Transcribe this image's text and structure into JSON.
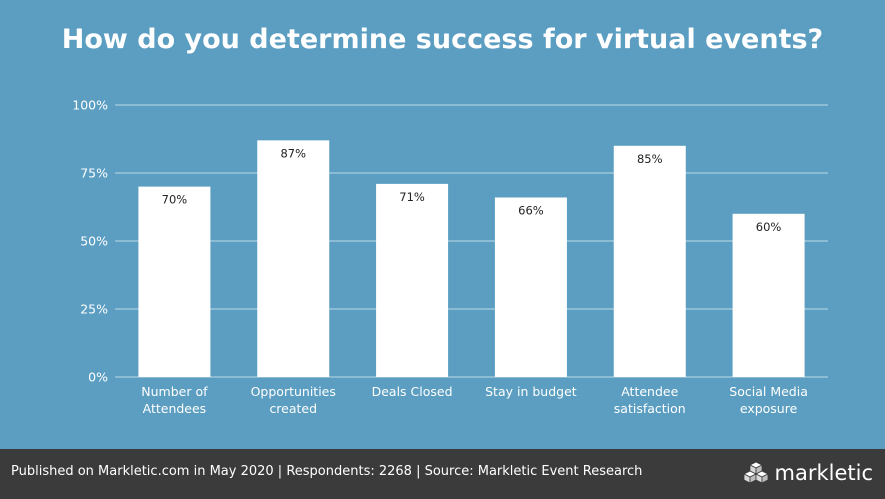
{
  "theme": {
    "background": "#5b9ec1",
    "gridline": "#a8cde0",
    "bar": "#ffffff",
    "bar_label": "#222222",
    "axis_text": "#ffffff",
    "footer_background": "#3b3b3b",
    "text": "#ffffff"
  },
  "chart_data": {
    "type": "bar",
    "title": "How do you determine success for virtual events?",
    "xlabel": "",
    "ylabel": "",
    "ylim": [
      0,
      100
    ],
    "yticks": [
      0,
      25,
      50,
      75,
      100
    ],
    "ytick_labels": [
      "0%",
      "25%",
      "50%",
      "75%",
      "100%"
    ],
    "grid": true,
    "categories": [
      [
        "Number of",
        "Attendees"
      ],
      [
        "Opportunities",
        "created"
      ],
      [
        "Deals Closed"
      ],
      [
        "Stay in budget"
      ],
      [
        "Attendee",
        "satisfaction"
      ],
      [
        "Social Media",
        "exposure"
      ]
    ],
    "values": [
      70,
      87,
      71,
      66,
      85,
      60
    ],
    "value_labels": [
      "70%",
      "87%",
      "71%",
      "66%",
      "85%",
      "60%"
    ]
  },
  "footer": {
    "text": "Published on Markletic.com in May 2020 | Respondents: 2268 | Source: Markletic Event Research",
    "brand": "markletic",
    "brand_icon": "cube-stack-logo-icon"
  }
}
